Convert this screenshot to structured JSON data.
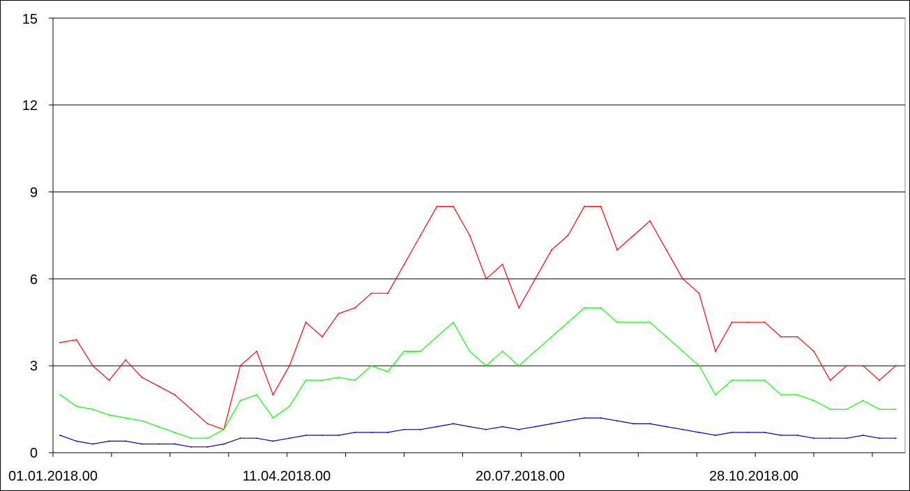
{
  "chart_data": {
    "type": "line",
    "title": "",
    "xlabel": "",
    "ylabel": "",
    "ylim": [
      0,
      15
    ],
    "yticks": [
      "0",
      "3",
      "6",
      "9",
      "12",
      "15"
    ],
    "xlim": [
      "2018-01-01",
      "2018-12-31"
    ],
    "xtick_labels": [
      "01.01.2018.00",
      "11.04.2018.00",
      "20.07.2018.00",
      "28.10.2018.00"
    ],
    "grid": true,
    "series": [
      {
        "color": "#ff0000",
        "sampling": "weekly mean (approx.)",
        "x": [
          "2018-01-04",
          "2018-01-11",
          "2018-01-18",
          "2018-01-25",
          "2018-02-01",
          "2018-02-08",
          "2018-02-15",
          "2018-02-22",
          "2018-03-01",
          "2018-03-08",
          "2018-03-15",
          "2018-03-22",
          "2018-03-29",
          "2018-04-05",
          "2018-04-12",
          "2018-04-19",
          "2018-04-26",
          "2018-05-03",
          "2018-05-10",
          "2018-05-17",
          "2018-05-24",
          "2018-05-31",
          "2018-06-07",
          "2018-06-14",
          "2018-06-21",
          "2018-06-28",
          "2018-07-05",
          "2018-07-12",
          "2018-07-19",
          "2018-07-26",
          "2018-08-02",
          "2018-08-09",
          "2018-08-16",
          "2018-08-23",
          "2018-08-30",
          "2018-09-06",
          "2018-09-13",
          "2018-09-20",
          "2018-09-27",
          "2018-10-04",
          "2018-10-11",
          "2018-10-18",
          "2018-10-25",
          "2018-11-01",
          "2018-11-08",
          "2018-11-15",
          "2018-11-22",
          "2018-11-29",
          "2018-12-06",
          "2018-12-13",
          "2018-12-20",
          "2018-12-27"
        ],
        "values": [
          3.8,
          3.9,
          3.0,
          2.5,
          3.2,
          2.6,
          2.3,
          2.0,
          1.5,
          1.0,
          0.8,
          3.0,
          3.5,
          2.0,
          3.0,
          4.5,
          4.0,
          4.8,
          5.0,
          5.5,
          5.5,
          6.5,
          7.5,
          8.5,
          8.5,
          7.5,
          6.0,
          6.5,
          5.0,
          6.0,
          7.0,
          7.5,
          8.5,
          8.5,
          7.0,
          7.5,
          8.0,
          7.0,
          6.0,
          5.5,
          3.5,
          4.5,
          4.5,
          4.5,
          4.0,
          4.0,
          3.5,
          2.5,
          3.0,
          3.0,
          2.5,
          3.0
        ]
      },
      {
        "color": "#00ff00",
        "sampling": "weekly mean (approx.)",
        "x": [
          "2018-01-04",
          "2018-01-11",
          "2018-01-18",
          "2018-01-25",
          "2018-02-01",
          "2018-02-08",
          "2018-02-15",
          "2018-02-22",
          "2018-03-01",
          "2018-03-08",
          "2018-03-15",
          "2018-03-22",
          "2018-03-29",
          "2018-04-05",
          "2018-04-12",
          "2018-04-19",
          "2018-04-26",
          "2018-05-03",
          "2018-05-10",
          "2018-05-17",
          "2018-05-24",
          "2018-05-31",
          "2018-06-07",
          "2018-06-14",
          "2018-06-21",
          "2018-06-28",
          "2018-07-05",
          "2018-07-12",
          "2018-07-19",
          "2018-07-26",
          "2018-08-02",
          "2018-08-09",
          "2018-08-16",
          "2018-08-23",
          "2018-08-30",
          "2018-09-06",
          "2018-09-13",
          "2018-09-20",
          "2018-09-27",
          "2018-10-04",
          "2018-10-11",
          "2018-10-18",
          "2018-10-25",
          "2018-11-01",
          "2018-11-08",
          "2018-11-15",
          "2018-11-22",
          "2018-11-29",
          "2018-12-06",
          "2018-12-13",
          "2018-12-20",
          "2018-12-27"
        ],
        "values": [
          2.0,
          1.6,
          1.5,
          1.3,
          1.2,
          1.1,
          0.9,
          0.7,
          0.5,
          0.5,
          0.8,
          1.8,
          2.0,
          1.2,
          1.6,
          2.5,
          2.5,
          2.6,
          2.5,
          3.0,
          2.8,
          3.5,
          3.5,
          4.0,
          4.5,
          3.5,
          3.0,
          3.5,
          3.0,
          3.5,
          4.0,
          4.5,
          5.0,
          5.0,
          4.5,
          4.5,
          4.5,
          4.0,
          3.5,
          3.0,
          2.0,
          2.5,
          2.5,
          2.5,
          2.0,
          2.0,
          1.8,
          1.5,
          1.5,
          1.8,
          1.5,
          1.5
        ]
      },
      {
        "color": "#0000cc",
        "sampling": "weekly mean (approx.)",
        "x": [
          "2018-01-04",
          "2018-01-11",
          "2018-01-18",
          "2018-01-25",
          "2018-02-01",
          "2018-02-08",
          "2018-02-15",
          "2018-02-22",
          "2018-03-01",
          "2018-03-08",
          "2018-03-15",
          "2018-03-22",
          "2018-03-29",
          "2018-04-05",
          "2018-04-12",
          "2018-04-19",
          "2018-04-26",
          "2018-05-03",
          "2018-05-10",
          "2018-05-17",
          "2018-05-24",
          "2018-05-31",
          "2018-06-07",
          "2018-06-14",
          "2018-06-21",
          "2018-06-28",
          "2018-07-05",
          "2018-07-12",
          "2018-07-19",
          "2018-07-26",
          "2018-08-02",
          "2018-08-09",
          "2018-08-16",
          "2018-08-23",
          "2018-08-30",
          "2018-09-06",
          "2018-09-13",
          "2018-09-20",
          "2018-09-27",
          "2018-10-04",
          "2018-10-11",
          "2018-10-18",
          "2018-10-25",
          "2018-11-01",
          "2018-11-08",
          "2018-11-15",
          "2018-11-22",
          "2018-11-29",
          "2018-12-06",
          "2018-12-13",
          "2018-12-20",
          "2018-12-27"
        ],
        "values": [
          0.6,
          0.4,
          0.3,
          0.4,
          0.4,
          0.3,
          0.3,
          0.3,
          0.2,
          0.2,
          0.3,
          0.5,
          0.5,
          0.4,
          0.5,
          0.6,
          0.6,
          0.6,
          0.7,
          0.7,
          0.7,
          0.8,
          0.8,
          0.9,
          1.0,
          0.9,
          0.8,
          0.9,
          0.8,
          0.9,
          1.0,
          1.1,
          1.2,
          1.2,
          1.1,
          1.0,
          1.0,
          0.9,
          0.8,
          0.7,
          0.6,
          0.7,
          0.7,
          0.7,
          0.6,
          0.6,
          0.5,
          0.5,
          0.5,
          0.6,
          0.5,
          0.5
        ]
      }
    ]
  }
}
